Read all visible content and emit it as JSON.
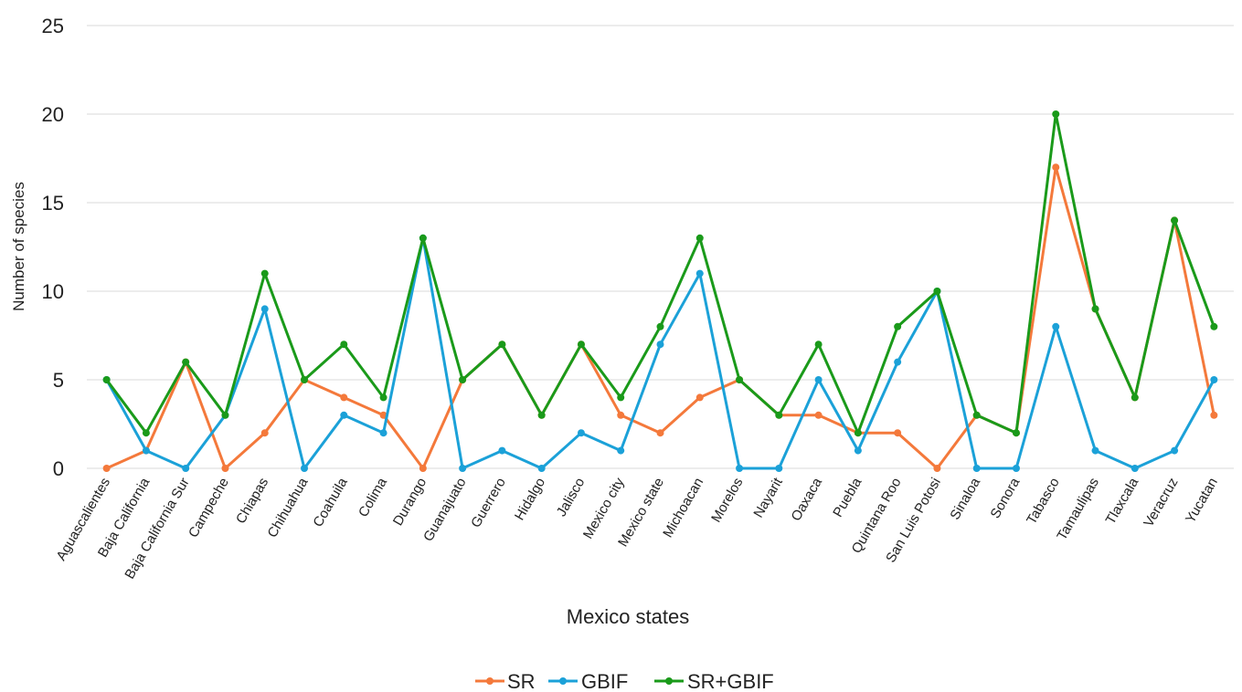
{
  "chart_data": {
    "type": "line",
    "title": "",
    "xlabel": "Mexico states",
    "ylabel": "Number of species",
    "ylim": [
      0,
      25
    ],
    "yticks": [
      "0",
      "5",
      "10",
      "15",
      "20",
      "25"
    ],
    "grid": true,
    "legend_position": "bottom",
    "categories": [
      "Aguascalientes",
      "Baja California",
      "Baja California Sur",
      "Campeche",
      "Chiapas",
      "Chihuahua",
      "Coahuila",
      "Colima",
      "Durango",
      "Guanajuato",
      "Guerrero",
      "Hidalgo",
      "Jalisco",
      "Mexico city",
      "Mexico state",
      "Michoacan",
      "Morelos",
      "Nayarit",
      "Oaxaca",
      "Puebla",
      "Quintana Roo",
      "San Luis Potosi",
      "Sinaloa",
      "Sonora",
      "Tabasco",
      "Tamaulipas",
      "Tlaxcala",
      "Veracruz",
      "Yucatan"
    ],
    "series": [
      {
        "name": "SR",
        "color": "#f4793b",
        "values": [
          0,
          1,
          6,
          0,
          2,
          5,
          4,
          3,
          0,
          5,
          7,
          3,
          7,
          3,
          2,
          4,
          5,
          3,
          3,
          2,
          2,
          0,
          3,
          2,
          17,
          9,
          4,
          14,
          3
        ]
      },
      {
        "name": "GBIF",
        "color": "#1ba1d8",
        "values": [
          5,
          1,
          0,
          3,
          9,
          0,
          3,
          2,
          13,
          0,
          1,
          0,
          2,
          1,
          7,
          11,
          0,
          0,
          5,
          1,
          6,
          10,
          0,
          0,
          8,
          1,
          0,
          1,
          5
        ]
      },
      {
        "name": "SR+GBIF",
        "color": "#1a9a1a",
        "values": [
          5,
          2,
          6,
          3,
          11,
          5,
          7,
          4,
          13,
          5,
          7,
          3,
          7,
          4,
          8,
          13,
          5,
          3,
          7,
          2,
          8,
          10,
          3,
          2,
          20,
          9,
          4,
          14,
          8
        ]
      }
    ]
  }
}
